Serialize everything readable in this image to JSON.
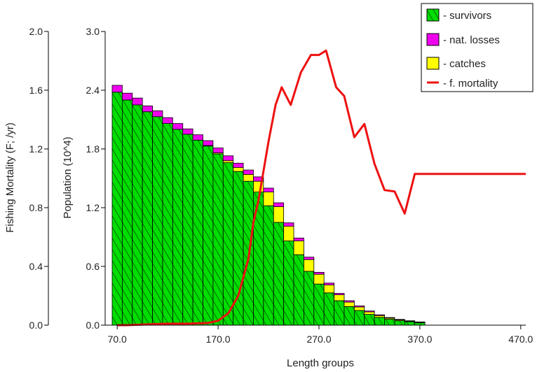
{
  "chart_data": {
    "type": "bar",
    "xlabel": "Length groups",
    "ylabel_left": "Fishing Mortality (F; /yr)",
    "ylabel_right": "Population (10^4)",
    "x_ticks": [
      "70.0",
      "170.0",
      "270.0",
      "370.0",
      "470.0"
    ],
    "x_tick_values": [
      70,
      170,
      270,
      370,
      470
    ],
    "xlim": [
      65,
      475
    ],
    "y_left_ticks": [
      "0.0",
      "0.4",
      "0.8",
      "1.2",
      "1.6",
      "2.0"
    ],
    "y_left_tick_values": [
      0.0,
      0.4,
      0.8,
      1.2,
      1.6,
      2.0
    ],
    "y_left_lim": [
      0,
      2.0
    ],
    "y_right_ticks": [
      "0.0",
      "0.6",
      "1.2",
      "1.8",
      "2.4",
      "3.0"
    ],
    "y_right_tick_values": [
      0.0,
      0.6,
      1.2,
      1.8,
      2.4,
      3.0
    ],
    "y_right_lim": [
      0,
      3.0
    ],
    "bar_width": 10,
    "bar_starts": [
      65,
      75,
      85,
      95,
      105,
      115,
      125,
      135,
      145,
      155,
      165,
      175,
      185,
      195,
      205,
      215,
      225,
      235,
      245,
      255,
      265,
      275,
      285,
      295,
      305,
      315,
      325,
      335,
      345,
      355,
      365
    ],
    "series": [
      {
        "name": "survivors",
        "color": "#00dd00",
        "values": [
          2.38,
          2.3,
          2.25,
          2.18,
          2.13,
          2.06,
          2.0,
          1.95,
          1.89,
          1.83,
          1.75,
          1.66,
          1.57,
          1.47,
          1.36,
          1.22,
          1.05,
          0.86,
          0.72,
          0.55,
          0.42,
          0.33,
          0.25,
          0.19,
          0.15,
          0.11,
          0.08,
          0.06,
          0.045,
          0.035,
          0.025
        ]
      },
      {
        "name": "nat. losses",
        "color": "#ee00ee",
        "values": [
          0.07,
          0.07,
          0.07,
          0.06,
          0.06,
          0.06,
          0.06,
          0.055,
          0.055,
          0.05,
          0.05,
          0.05,
          0.045,
          0.045,
          0.045,
          0.04,
          0.04,
          0.035,
          0.03,
          0.025,
          0.02,
          0.02,
          0.015,
          0.015,
          0.012,
          0.01,
          0.008,
          0.006,
          0.005,
          0.004,
          0.003
        ]
      },
      {
        "name": "catches",
        "color": "#ffff00",
        "values": [
          0.0,
          0.0,
          0.0,
          0.0,
          0.0,
          0.0,
          0.0,
          0.0,
          0.0,
          0.005,
          0.01,
          0.02,
          0.04,
          0.07,
          0.11,
          0.14,
          0.16,
          0.15,
          0.14,
          0.12,
          0.1,
          0.08,
          0.06,
          0.045,
          0.035,
          0.025,
          0.018,
          0.012,
          0.009,
          0.006,
          0.005
        ]
      }
    ],
    "line": {
      "name": "f. mortality",
      "color": "#ee1111",
      "points": [
        [
          70,
          0.0
        ],
        [
          80,
          0.0
        ],
        [
          100,
          0.005
        ],
        [
          120,
          0.01
        ],
        [
          140,
          0.01
        ],
        [
          160,
          0.015
        ],
        [
          170,
          0.03
        ],
        [
          180,
          0.08
        ],
        [
          190,
          0.2
        ],
        [
          200,
          0.45
        ],
        [
          205,
          0.7
        ],
        [
          210,
          0.85
        ],
        [
          215,
          1.05
        ],
        [
          220,
          1.25
        ],
        [
          227,
          1.5
        ],
        [
          233,
          1.62
        ],
        [
          242,
          1.5
        ],
        [
          252,
          1.72
        ],
        [
          262,
          1.84
        ],
        [
          270,
          1.84
        ],
        [
          277,
          1.87
        ],
        [
          287,
          1.62
        ],
        [
          295,
          1.56
        ],
        [
          305,
          1.28
        ],
        [
          315,
          1.37
        ],
        [
          325,
          1.1
        ],
        [
          335,
          0.92
        ],
        [
          345,
          0.91
        ],
        [
          355,
          0.76
        ],
        [
          365,
          1.03
        ],
        [
          475,
          1.03
        ]
      ]
    },
    "legend": {
      "position": "top-right",
      "entries": [
        {
          "label": "- survivors",
          "color": "#00dd00",
          "kind": "hatched-box"
        },
        {
          "label": "- nat. losses",
          "color": "#ee00ee",
          "kind": "box"
        },
        {
          "label": "- catches",
          "color": "#ffff00",
          "kind": "box"
        },
        {
          "label": "- f. mortality",
          "color": "#ee1111",
          "kind": "line"
        }
      ]
    }
  }
}
